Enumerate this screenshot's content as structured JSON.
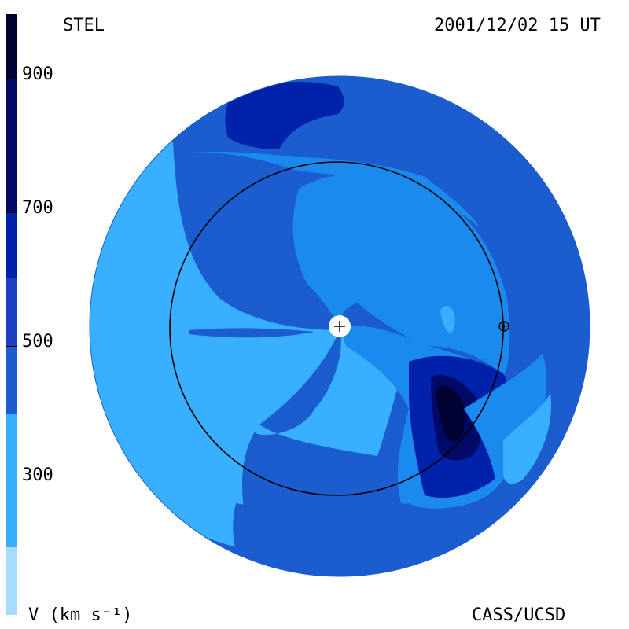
{
  "header": {
    "label_left": "STEL",
    "timestamp": "2001/12/02 15 UT"
  },
  "footer": {
    "label_left": "V (km s⁻¹)",
    "label_right": "CASS/UCSD"
  },
  "colorbar": {
    "ticks": [
      "900",
      "700",
      "500",
      "300"
    ],
    "colors": [
      "#000033",
      "#000a66",
      "#0022aa",
      "#1b5ccf",
      "#1a8aee",
      "#38b0ff",
      "#a8dcff"
    ]
  },
  "map": {
    "sun_marker": "+",
    "earth_marker": "earth-symbol",
    "colors": {
      "very_fast": "#000a66",
      "fast": "#0022aa",
      "medium_fast": "#1b5ccf",
      "medium": "#1a8aee",
      "slow": "#38b0ff",
      "orbit": "#000000"
    }
  }
}
